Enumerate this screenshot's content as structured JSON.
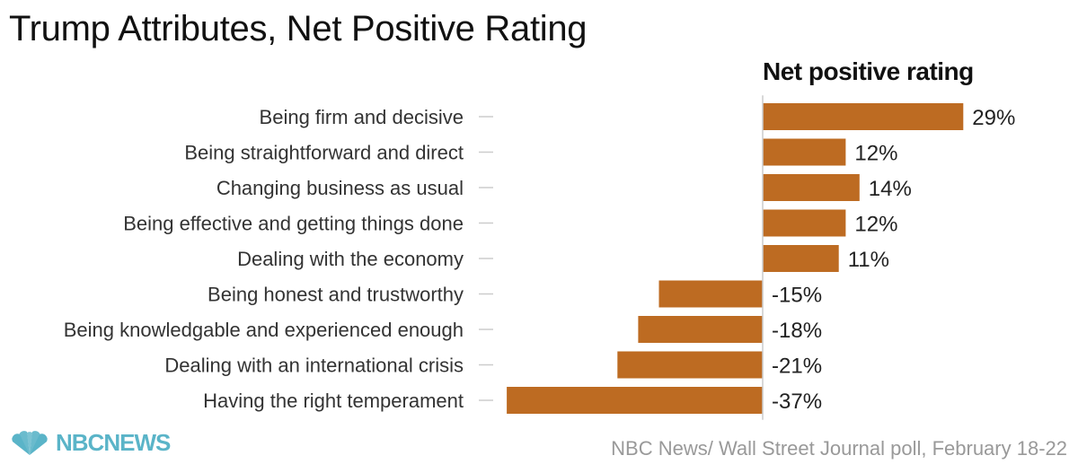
{
  "title": "Trump Attributes, Net Positive Rating",
  "source": "NBC News/ Wall Street Journal poll, February 18-22",
  "logo": {
    "text": "NBCNEWS",
    "icon": "peacock-icon"
  },
  "colors": {
    "bar": "#bd6b22",
    "axis": "#cccccc",
    "tick": "#cccccc"
  },
  "chart_data": {
    "type": "bar",
    "orientation": "horizontal",
    "value_header": "Net positive rating",
    "categories": [
      "Being firm and decisive",
      "Being straightforward and direct",
      "Changing business as usual",
      "Being effective and getting things done",
      "Dealing with the economy",
      "Being honest and trustworthy",
      "Being knowledgable and experienced enough",
      "Dealing with an international crisis",
      "Having the right temperament"
    ],
    "values": [
      29,
      12,
      14,
      12,
      11,
      -15,
      -18,
      -21,
      -37
    ],
    "value_labels": [
      "29%",
      "12%",
      "14%",
      "12%",
      "11%",
      "-15%",
      "-18%",
      "-21%",
      "-37%"
    ],
    "unit": "%"
  }
}
